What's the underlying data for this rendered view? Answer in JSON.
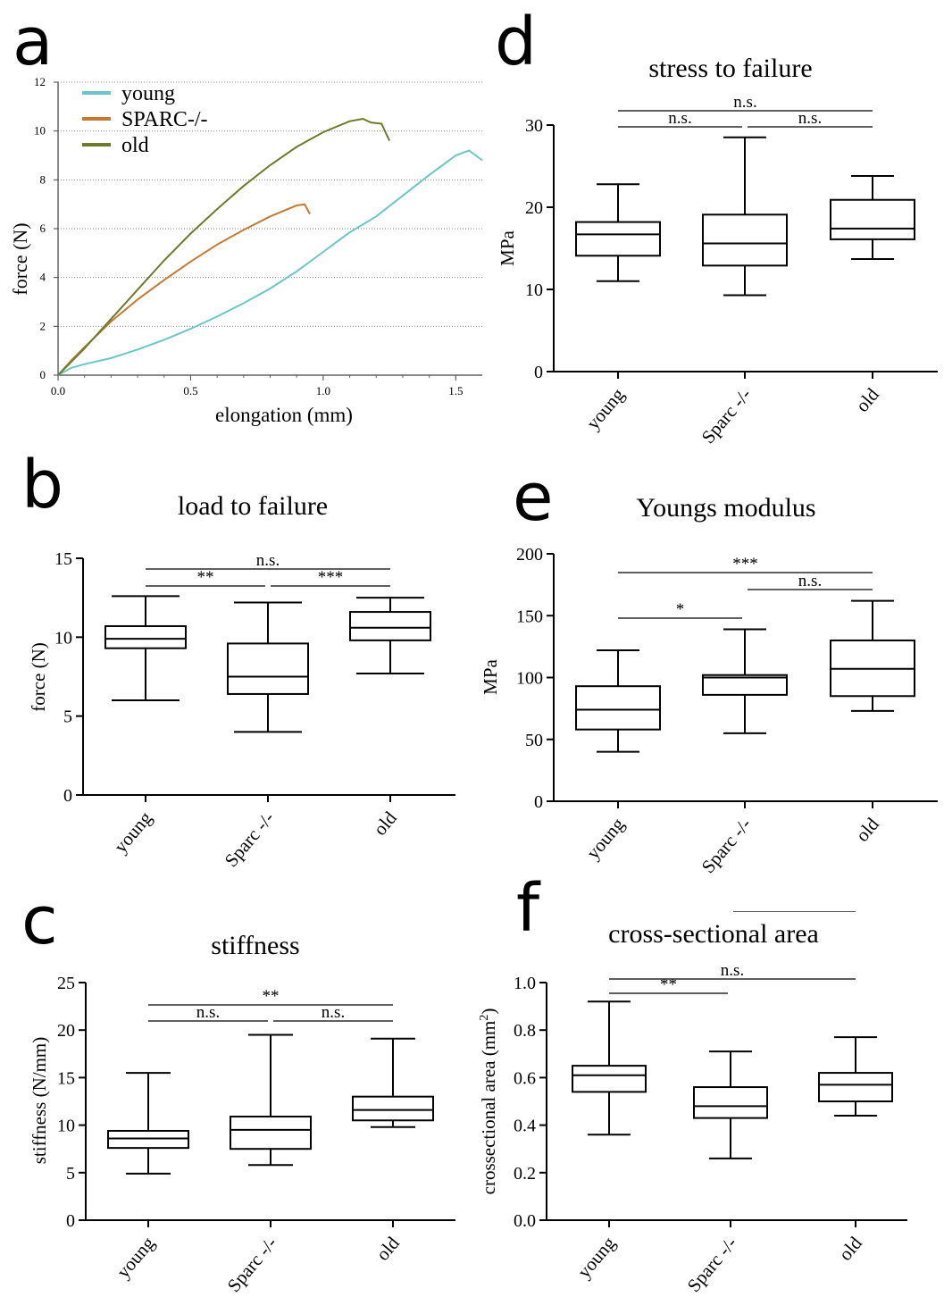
{
  "colors": {
    "young": "#6cc5c8",
    "sparc": "#c47a32",
    "old": "#6d7a2c",
    "axis": "#000000",
    "grid": "#8a8a8a"
  },
  "chart_data": [
    {
      "panel": "a",
      "type": "line",
      "title": "",
      "xlabel": "elongation (mm)",
      "ylabel": "force (N)",
      "xlim": [
        0,
        1.6
      ],
      "ylim": [
        0,
        12
      ],
      "xticks": [
        "0.0",
        "0.5",
        "1.0",
        "1.5"
      ],
      "yticks": [
        "0",
        "2",
        "4",
        "6",
        "8",
        "10",
        "12"
      ],
      "grid": "horizontal dotted",
      "legend_position": "top-left",
      "series": [
        {
          "name": "young",
          "color": "young",
          "x": [
            0,
            0.05,
            0.1,
            0.2,
            0.3,
            0.4,
            0.5,
            0.6,
            0.7,
            0.8,
            0.9,
            1.0,
            1.1,
            1.2,
            1.3,
            1.4,
            1.5,
            1.55,
            1.6
          ],
          "y": [
            0,
            0.3,
            0.45,
            0.7,
            1.05,
            1.45,
            1.9,
            2.4,
            2.95,
            3.55,
            4.25,
            5.05,
            5.85,
            6.5,
            7.35,
            8.2,
            9.0,
            9.2,
            8.8
          ]
        },
        {
          "name": "SPARC-/-",
          "color": "sparc",
          "x": [
            0,
            0.05,
            0.1,
            0.2,
            0.3,
            0.4,
            0.5,
            0.6,
            0.7,
            0.8,
            0.9,
            0.93,
            0.95
          ],
          "y": [
            0,
            0.6,
            1.15,
            2.2,
            3.1,
            3.9,
            4.65,
            5.35,
            5.95,
            6.5,
            6.95,
            7.0,
            6.6
          ]
        },
        {
          "name": "old",
          "color": "old",
          "x": [
            0,
            0.05,
            0.1,
            0.2,
            0.3,
            0.4,
            0.5,
            0.6,
            0.7,
            0.8,
            0.9,
            1.0,
            1.1,
            1.15,
            1.18,
            1.22,
            1.25
          ],
          "y": [
            0,
            0.55,
            1.1,
            2.3,
            3.5,
            4.7,
            5.8,
            6.8,
            7.75,
            8.6,
            9.35,
            9.95,
            10.4,
            10.5,
            10.35,
            10.3,
            9.6
          ]
        }
      ]
    },
    {
      "panel": "b",
      "type": "box",
      "title": "load to failure",
      "ylabel": "force (N)",
      "ylim": [
        0,
        15
      ],
      "yticks": [
        "0",
        "5",
        "10",
        "15"
      ],
      "categories": [
        "young",
        "Sparc -/-",
        "old"
      ],
      "boxes": [
        {
          "min": 6.0,
          "q1": 9.3,
          "median": 9.9,
          "q3": 10.7,
          "max": 12.6
        },
        {
          "min": 4.0,
          "q1": 6.4,
          "median": 7.5,
          "q3": 9.6,
          "max": 12.2
        },
        {
          "min": 7.7,
          "q1": 9.8,
          "median": 10.6,
          "q3": 11.6,
          "max": 12.5
        }
      ],
      "significance": [
        {
          "from": 0,
          "to": 2,
          "label": "n.s.",
          "level": 0
        },
        {
          "from": 0,
          "to": 1,
          "label": "**",
          "level": 1
        },
        {
          "from": 1,
          "to": 2,
          "label": "***",
          "level": 1
        }
      ]
    },
    {
      "panel": "c",
      "type": "box",
      "title": "stiffness",
      "ylabel": "stiffness (N/mm)",
      "ylim": [
        0,
        25
      ],
      "yticks": [
        "0",
        "5",
        "10",
        "15",
        "20",
        "25"
      ],
      "categories": [
        "young",
        "Sparc -/-",
        "old"
      ],
      "boxes": [
        {
          "min": 4.9,
          "q1": 7.6,
          "median": 8.6,
          "q3": 9.4,
          "max": 15.5
        },
        {
          "min": 5.8,
          "q1": 7.5,
          "median": 9.5,
          "q3": 10.9,
          "max": 19.5
        },
        {
          "min": 9.8,
          "q1": 10.5,
          "median": 11.6,
          "q3": 13.0,
          "max": 19.1
        }
      ],
      "significance": [
        {
          "from": 0,
          "to": 2,
          "label": "**",
          "level": 0
        },
        {
          "from": 0,
          "to": 1,
          "label": "n.s.",
          "level": 1
        },
        {
          "from": 1,
          "to": 2,
          "label": "n.s.",
          "level": 1
        }
      ]
    },
    {
      "panel": "d",
      "type": "box",
      "title": "stress to failure",
      "ylabel": "MPa",
      "ylim": [
        0,
        30
      ],
      "yticks": [
        "0",
        "10",
        "20",
        "30"
      ],
      "categories": [
        "young",
        "Sparc -/-",
        "old"
      ],
      "boxes": [
        {
          "min": 11.0,
          "q1": 14.1,
          "median": 16.7,
          "q3": 18.2,
          "max": 22.8
        },
        {
          "min": 9.3,
          "q1": 12.9,
          "median": 15.6,
          "q3": 19.1,
          "max": 28.5
        },
        {
          "min": 13.7,
          "q1": 16.1,
          "median": 17.4,
          "q3": 20.9,
          "max": 23.8
        }
      ],
      "significance": [
        {
          "from": 0,
          "to": 2,
          "label": "n.s.",
          "level": 0
        },
        {
          "from": 0,
          "to": 1,
          "label": "n.s.",
          "level": 1
        },
        {
          "from": 1,
          "to": 2,
          "label": "n.s.",
          "level": 1
        }
      ]
    },
    {
      "panel": "e",
      "type": "box",
      "title": "Youngs modulus",
      "ylabel": "MPa",
      "ylim": [
        0,
        200
      ],
      "yticks": [
        "0",
        "50",
        "100",
        "150",
        "200"
      ],
      "categories": [
        "young",
        "Sparc -/-",
        "old"
      ],
      "boxes": [
        {
          "min": 40,
          "q1": 58,
          "median": 74,
          "q3": 93,
          "max": 122
        },
        {
          "min": 55,
          "q1": 86,
          "median": 100,
          "q3": 102,
          "max": 139
        },
        {
          "min": 73,
          "q1": 85,
          "median": 107,
          "q3": 130,
          "max": 162
        }
      ],
      "significance": [
        {
          "from": 0,
          "to": 2,
          "label": "***",
          "level": 0
        },
        {
          "from": 1,
          "to": 2,
          "label": "n.s.",
          "level": 1
        },
        {
          "from": 0,
          "to": 1,
          "label": "*",
          "level": 2
        }
      ]
    },
    {
      "panel": "f",
      "type": "box",
      "title": "cross-sectional area",
      "ylabel": "crossectional area (mm",
      "ylabel_sup": "2",
      "ylabel_end": ")",
      "ylim": [
        0,
        1.0
      ],
      "yticks": [
        "0.0",
        "0.2",
        "0.4",
        "0.6",
        "0.8",
        "1.0"
      ],
      "categories": [
        "young",
        "Sparc -/-",
        "old"
      ],
      "boxes": [
        {
          "min": 0.36,
          "q1": 0.54,
          "median": 0.61,
          "q3": 0.65,
          "max": 0.92
        },
        {
          "min": 0.26,
          "q1": 0.43,
          "median": 0.48,
          "q3": 0.56,
          "max": 0.71
        },
        {
          "min": 0.44,
          "q1": 0.5,
          "median": 0.57,
          "q3": 0.62,
          "max": 0.77
        }
      ],
      "significance": [
        {
          "from": 0,
          "to": 2,
          "label": "n.s.",
          "level": 0
        },
        {
          "from": 0,
          "to": 1,
          "label": "**",
          "level": 1
        },
        {
          "from": 1,
          "to": 2,
          "label": "*",
          "level": 3
        }
      ]
    }
  ],
  "panel_labels": {
    "a": "a",
    "b": "b",
    "c": "c",
    "d": "d",
    "e": "e",
    "f": "f"
  }
}
